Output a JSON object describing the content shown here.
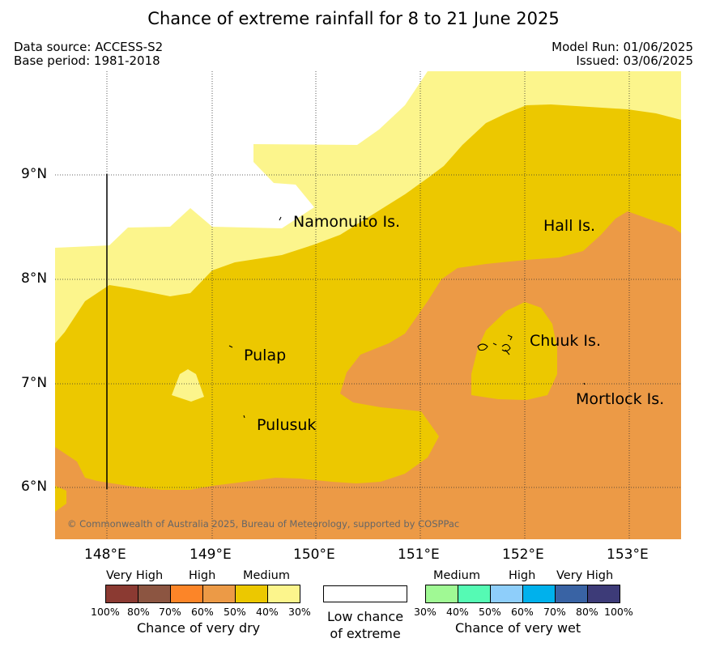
{
  "title": "Chance of extreme rainfall for 8 to 21 June 2025",
  "meta": {
    "data_source": "Data source: ACCESS-S2",
    "base_period": "Base period: 1981-2018",
    "model_run": "Model Run: 01/06/2025",
    "issued": "Issued: 03/06/2025"
  },
  "map": {
    "lat_labels": [
      "9°N",
      "8°N",
      "7°N",
      "6°N"
    ],
    "lon_labels": [
      "148°E",
      "149°E",
      "150°E",
      "151°E",
      "152°E",
      "153°E"
    ],
    "places": {
      "namonuito": "Namonuito Is.",
      "hall": "Hall Is.",
      "pulap": "Pulap",
      "chuuk": "Chuuk Is.",
      "mortlock": "Mortlock Is.",
      "pulusuk": "Pulusuk"
    },
    "copyright": "© Commonwealth of Australia 2025, Bureau of Meteorology, supported by COSPPac",
    "colors": {
      "dry_30_40": "#fcf58c",
      "dry_40_50": "#ecc800",
      "dry_50_60": "#ec9a46",
      "background": "#ffffff"
    }
  },
  "legend": {
    "dry": {
      "bands": [
        "Very High",
        "High",
        "Medium"
      ],
      "percentages": [
        "100%",
        "80%",
        "70%",
        "60%",
        "50%",
        "40%",
        "30%"
      ],
      "colors": [
        "#8b3a32",
        "#8c5541",
        "#fc8528",
        "#ec9a46",
        "#ecc800",
        "#fcf58c"
      ],
      "title": "Chance of very dry"
    },
    "low": {
      "line1": "Low chance",
      "line2": "of extreme"
    },
    "wet": {
      "bands": [
        "Medium",
        "High",
        "Very High"
      ],
      "percentages": [
        "30%",
        "40%",
        "50%",
        "60%",
        "70%",
        "80%",
        "100%"
      ],
      "colors": [
        "#a0f994",
        "#55fab4",
        "#8ecefa",
        "#00b1ec",
        "#3963a4",
        "#3d3b78"
      ],
      "title": "Chance of very wet"
    }
  }
}
